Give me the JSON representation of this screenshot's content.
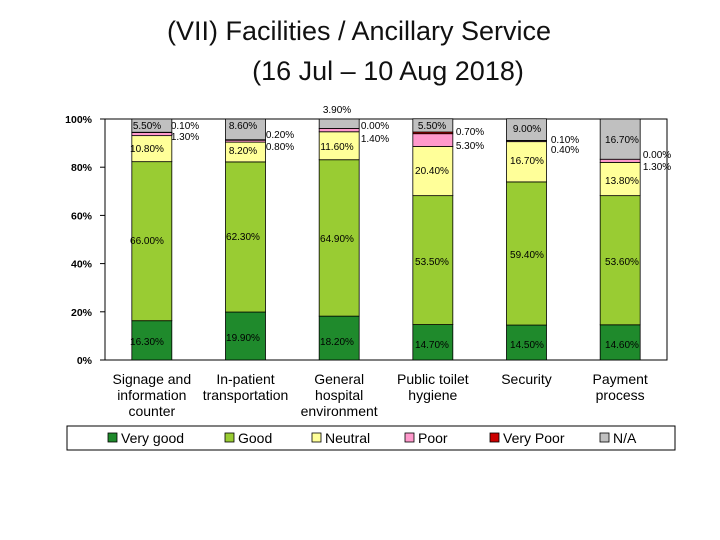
{
  "title": {
    "line1": "(VII) Facilities / Ancillary Service",
    "line2": "(16 Jul – 10 Aug 2018)"
  },
  "chart_data": {
    "type": "bar",
    "stacked": true,
    "percent_stacked": true,
    "categories": [
      [
        "Signage and",
        "information",
        "counter"
      ],
      [
        "In-patient",
        "transportation"
      ],
      [
        "General",
        "hospital",
        "environment"
      ],
      [
        "Public toilet",
        "hygiene"
      ],
      [
        "Security"
      ],
      [
        "Payment",
        "process"
      ]
    ],
    "y_ticks": [
      "0%",
      "20%",
      "40%",
      "60%",
      "80%",
      "100%"
    ],
    "ylim": [
      0,
      100
    ],
    "legend_position": "bottom",
    "series": [
      {
        "name": "Very good",
        "color": "#1f8a2c",
        "values": [
          16.3,
          19.9,
          18.2,
          14.7,
          14.5,
          14.6
        ],
        "labels": [
          "16.30%",
          "19.90%",
          "18.20%",
          "14.70%",
          "14.50%",
          "14.60%"
        ]
      },
      {
        "name": "Good",
        "color": "#99cc33",
        "values": [
          66.0,
          62.3,
          64.9,
          53.5,
          59.4,
          53.6
        ],
        "labels": [
          "66.00%",
          "62.30%",
          "64.90%",
          "53.50%",
          "59.40%",
          "53.60%"
        ]
      },
      {
        "name": "Neutral",
        "color": "#ffff99",
        "values": [
          10.8,
          8.2,
          11.6,
          20.4,
          16.7,
          13.8
        ],
        "labels": [
          "10.80%",
          "8.20%",
          "11.60%",
          "20.40%",
          "16.70%",
          "13.80%"
        ]
      },
      {
        "name": "Poor",
        "color": "#ff99cc",
        "values": [
          1.3,
          0.8,
          1.4,
          5.3,
          0.4,
          1.3
        ],
        "labels": [
          "1.30%",
          "0.80%",
          "1.40%",
          "5.30%",
          "0.40%",
          "1.30%"
        ]
      },
      {
        "name": "Very Poor",
        "color": "#cc0000",
        "values": [
          0.1,
          0.2,
          0.0,
          0.7,
          0.1,
          0.0
        ],
        "labels": [
          "0.10%",
          "0.20%",
          "0.00%",
          "0.70%",
          "0.10%",
          "0.00%"
        ]
      },
      {
        "name": "N/A",
        "color": "#c0c0c0",
        "values": [
          5.5,
          8.6,
          3.9,
          5.5,
          9.0,
          16.7
        ],
        "labels": [
          "5.50%",
          "8.60%",
          "3.90%",
          "5.50%",
          "9.00%",
          "16.70%"
        ]
      }
    ]
  }
}
